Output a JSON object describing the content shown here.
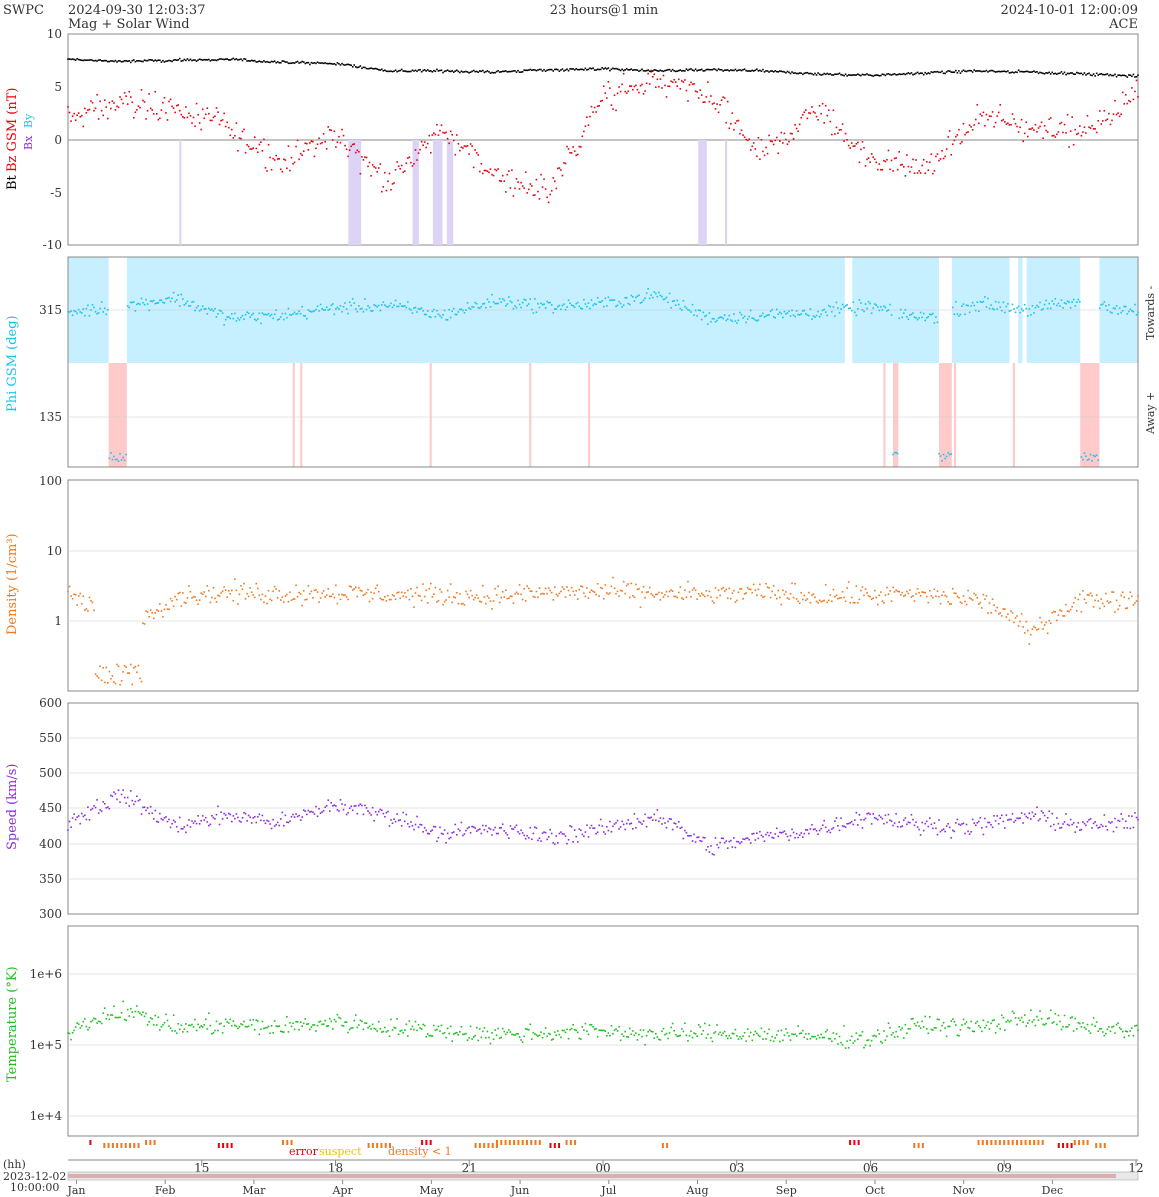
{
  "header": {
    "source": "SWPC",
    "start_time": "2024-09-30 12:03:37",
    "subtitle": "Mag + Solar Wind",
    "span": "23 hours@1 min",
    "end_time": "2024-10-01 12:00:09",
    "spacecraft": "ACE"
  },
  "colors": {
    "bt": "#000000",
    "bz": "#e8000b",
    "bx": "#8b2be2",
    "by": "#1ac3ec",
    "phi": "#1ac3ec",
    "density": "#f2781d",
    "speed": "#8b2be2",
    "temperature": "#1bc01b",
    "towards_fill": "#c6efff",
    "away_fill": "#ffcaca",
    "bz_neg_fill": "#ddd4f5",
    "flag_error": "#e8000b",
    "flag_suspect": "#e8c400",
    "flag_density": "#f2781d"
  },
  "panels": [
    {
      "id": "mag",
      "ylabels": [
        {
          "text": "Bt",
          "color": "#000000"
        },
        {
          "text": "Bz GSM (nT)",
          "color": "#e8000b"
        }
      ],
      "legend_small": [
        "Bx",
        "By"
      ],
      "yticks": [
        "10",
        "5",
        "0",
        "-5",
        "-10"
      ]
    },
    {
      "id": "phi",
      "ylabel": "Phi GSM (deg)",
      "yticks": [
        "315",
        "135"
      ],
      "side_labels": [
        "Towards -",
        "Away +"
      ]
    },
    {
      "id": "density",
      "ylabel": "Density (1/cm³)",
      "yticks": [
        "100",
        "10",
        "1"
      ]
    },
    {
      "id": "speed",
      "ylabel": "Speed (km/s)",
      "yticks": [
        "600",
        "550",
        "500",
        "450",
        "400",
        "350",
        "300"
      ]
    },
    {
      "id": "temperature",
      "ylabel": "Temperature (°K)",
      "yticks": [
        "1e+6",
        "1e+5",
        "1e+4"
      ]
    }
  ],
  "flags": {
    "error": "error",
    "suspect": "suspect",
    "density": "density < 1"
  },
  "time_axis": {
    "hh_label": "(hh)",
    "date_label": "2023-12-02",
    "time_label": "10:00:00",
    "hour_ticks": [
      "15",
      "18",
      "21",
      "00",
      "03",
      "06",
      "09",
      "12"
    ],
    "month_ticks": [
      "Jan",
      "Feb",
      "Mar",
      "Apr",
      "May",
      "Jun",
      "Jul",
      "Aug",
      "Sep",
      "Oct",
      "Nov",
      "Dec"
    ]
  },
  "chart_data": [
    {
      "type": "scatter",
      "title": "Mag",
      "ylabel": "Bt Bz GSM (nT)",
      "ylim": [
        -10,
        10
      ],
      "x": [
        0,
        0.05,
        0.1,
        0.15,
        0.2,
        0.25,
        0.3,
        0.35,
        0.4,
        0.45,
        0.5,
        0.55,
        0.6,
        0.65,
        0.7,
        0.75,
        0.8,
        0.85,
        0.9,
        0.95,
        1
      ],
      "series": [
        {
          "name": "Bt",
          "values": [
            7.6,
            7.4,
            7.5,
            7.6,
            7.3,
            7.2,
            6.5,
            6.5,
            6.4,
            6.6,
            6.7,
            6.5,
            6.6,
            6.5,
            6.2,
            6.1,
            6.3,
            6.5,
            6.4,
            6.2,
            6.0
          ]
        },
        {
          "name": "Bz GSM",
          "values": [
            2.0,
            3.5,
            3.0,
            1.0,
            -2.0,
            0.5,
            -4.0,
            1.0,
            -3.5,
            -5.0,
            4.0,
            5.5,
            4.0,
            -1.5,
            3.0,
            -2.0,
            -3.0,
            2.0,
            1.2,
            0.8,
            4.5
          ]
        }
      ],
      "grid": true
    },
    {
      "type": "scatter",
      "title": "Phi",
      "ylabel": "Phi GSM (deg)",
      "ylim": [
        45,
        405
      ],
      "x": [
        0,
        0.05,
        0.1,
        0.15,
        0.2,
        0.25,
        0.3,
        0.35,
        0.4,
        0.45,
        0.5,
        0.55,
        0.6,
        0.65,
        0.7,
        0.75,
        0.8,
        0.85,
        0.9,
        0.95,
        1
      ],
      "series": [
        {
          "name": "Phi GSM",
          "values": [
            310,
            320,
            335,
            300,
            305,
            318,
            322,
            305,
            330,
            320,
            325,
            340,
            300,
            305,
            310,
            320,
            300,
            325,
            315,
            330,
            310
          ]
        }
      ],
      "grid": true
    },
    {
      "type": "scatter",
      "title": "Density",
      "ylabel": "Density (1/cm³)",
      "ylim": [
        0.1,
        100
      ],
      "yscale": "log",
      "x": [
        0,
        0.05,
        0.1,
        0.15,
        0.2,
        0.25,
        0.3,
        0.35,
        0.4,
        0.45,
        0.5,
        0.55,
        0.6,
        0.65,
        0.7,
        0.75,
        0.8,
        0.85,
        0.9,
        0.95,
        1
      ],
      "series": [
        {
          "name": "Density",
          "values": [
            2.5,
            0.15,
            2.2,
            2.5,
            2.4,
            2.5,
            2.3,
            2.3,
            2.2,
            2.5,
            2.6,
            2.4,
            2.3,
            2.5,
            2.2,
            2.3,
            2.3,
            2.0,
            0.6,
            2.0,
            2.0
          ]
        }
      ],
      "grid": true
    },
    {
      "type": "scatter",
      "title": "Speed",
      "ylabel": "Speed (km/s)",
      "ylim": [
        300,
        600
      ],
      "x": [
        0,
        0.05,
        0.1,
        0.15,
        0.2,
        0.25,
        0.3,
        0.35,
        0.4,
        0.45,
        0.5,
        0.55,
        0.6,
        0.65,
        0.7,
        0.75,
        0.8,
        0.85,
        0.9,
        0.95,
        1
      ],
      "series": [
        {
          "name": "Speed",
          "values": [
            430,
            470,
            425,
            440,
            430,
            455,
            440,
            415,
            420,
            410,
            420,
            440,
            395,
            410,
            420,
            440,
            425,
            425,
            440,
            425,
            430
          ]
        }
      ],
      "grid": true
    },
    {
      "type": "scatter",
      "title": "Temperature",
      "ylabel": "Temperature (°K)",
      "ylim": [
        5000,
        2000000
      ],
      "yscale": "log",
      "x": [
        0,
        0.05,
        0.1,
        0.15,
        0.2,
        0.25,
        0.3,
        0.35,
        0.4,
        0.45,
        0.5,
        0.55,
        0.6,
        0.65,
        0.7,
        0.75,
        0.8,
        0.85,
        0.9,
        0.95,
        1
      ],
      "series": [
        {
          "name": "Temperature",
          "values": [
            100000,
            180000,
            110000,
            120000,
            110000,
            130000,
            110000,
            100000,
            90000,
            95000,
            100000,
            90000,
            95000,
            90000,
            85000,
            80000,
            120000,
            110000,
            150000,
            110000,
            100000
          ]
        }
      ],
      "grid": true
    }
  ]
}
